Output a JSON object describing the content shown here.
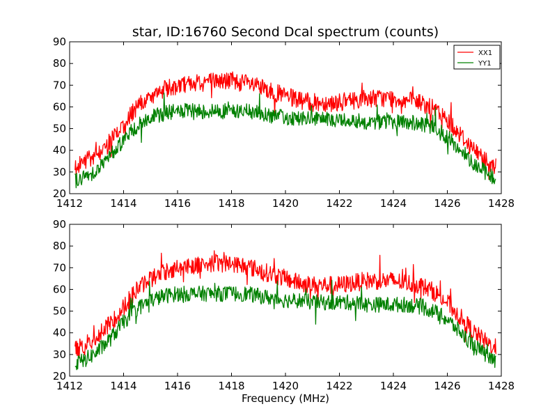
{
  "chart_data": [
    {
      "type": "line",
      "title": "star, ID:16760 Second Dcal spectrum (counts)",
      "xlabel": "",
      "ylabel": "",
      "xlim": [
        1412,
        1428
      ],
      "ylim": [
        20,
        90
      ],
      "xticks": [
        1412,
        1414,
        1416,
        1418,
        1420,
        1422,
        1424,
        1426,
        1428
      ],
      "yticks": [
        20,
        30,
        40,
        50,
        60,
        70,
        80,
        90
      ],
      "legend": {
        "placement": "top-right",
        "entries": [
          "XX1",
          "YY1"
        ]
      },
      "grid": false,
      "series": [
        {
          "name": "XX1",
          "color": "#ff0000",
          "x": [
            1412.2,
            1412.5,
            1413.0,
            1413.5,
            1414.0,
            1414.5,
            1415.0,
            1415.5,
            1416.0,
            1416.5,
            1417.0,
            1417.5,
            1418.0,
            1418.5,
            1419.0,
            1419.5,
            1420.0,
            1420.5,
            1421.0,
            1421.5,
            1422.0,
            1422.5,
            1423.0,
            1423.5,
            1424.0,
            1424.5,
            1425.0,
            1425.5,
            1426.0,
            1426.5,
            1427.0,
            1427.5,
            1427.8
          ],
          "values": [
            32,
            34,
            38,
            44,
            52,
            60,
            65,
            68,
            70,
            71,
            72,
            72,
            72,
            71,
            69,
            67,
            65,
            63,
            62,
            62,
            62,
            63,
            64,
            64,
            64,
            63,
            62,
            59,
            54,
            47,
            40,
            35,
            33
          ]
        },
        {
          "name": "YY1",
          "color": "#008000",
          "x": [
            1412.2,
            1412.5,
            1413.0,
            1413.5,
            1414.0,
            1414.5,
            1415.0,
            1415.5,
            1416.0,
            1416.5,
            1417.0,
            1417.5,
            1418.0,
            1418.5,
            1419.0,
            1419.5,
            1420.0,
            1420.5,
            1421.0,
            1421.5,
            1422.0,
            1422.5,
            1423.0,
            1423.5,
            1424.0,
            1424.5,
            1425.0,
            1425.5,
            1426.0,
            1426.5,
            1427.0,
            1427.5,
            1427.8
          ],
          "values": [
            26,
            27,
            31,
            37,
            45,
            51,
            55,
            57,
            58,
            58,
            58,
            58,
            58,
            58,
            57,
            56,
            55,
            55,
            54,
            54,
            54,
            54,
            53,
            53,
            53,
            53,
            52,
            50,
            46,
            40,
            34,
            29,
            27
          ]
        }
      ]
    },
    {
      "type": "line",
      "title": "",
      "xlabel": "Frequency (MHz)",
      "ylabel": "",
      "xlim": [
        1412,
        1428
      ],
      "ylim": [
        20,
        90
      ],
      "xticks": [
        1412,
        1414,
        1416,
        1418,
        1420,
        1422,
        1424,
        1426,
        1428
      ],
      "yticks": [
        20,
        30,
        40,
        50,
        60,
        70,
        80,
        90
      ],
      "grid": false,
      "series": [
        {
          "color": "#ff0000",
          "x": [
            1412.2,
            1412.5,
            1413.0,
            1413.5,
            1414.0,
            1414.5,
            1415.0,
            1415.5,
            1416.0,
            1416.5,
            1417.0,
            1417.5,
            1418.0,
            1418.5,
            1419.0,
            1419.5,
            1420.0,
            1420.5,
            1421.0,
            1421.5,
            1422.0,
            1422.5,
            1423.0,
            1423.5,
            1424.0,
            1424.5,
            1425.0,
            1425.5,
            1426.0,
            1426.5,
            1427.0,
            1427.5,
            1427.8
          ],
          "values": [
            32,
            34,
            38,
            44,
            52,
            60,
            65,
            68,
            70,
            71,
            72,
            72,
            72,
            71,
            69,
            67,
            65,
            63,
            62,
            62,
            62,
            63,
            64,
            64,
            64,
            63,
            62,
            59,
            54,
            47,
            40,
            35,
            33
          ]
        },
        {
          "color": "#008000",
          "x": [
            1412.2,
            1412.5,
            1413.0,
            1413.5,
            1414.0,
            1414.5,
            1415.0,
            1415.5,
            1416.0,
            1416.5,
            1417.0,
            1417.5,
            1418.0,
            1418.5,
            1419.0,
            1419.5,
            1420.0,
            1420.5,
            1421.0,
            1421.5,
            1422.0,
            1422.5,
            1423.0,
            1423.5,
            1424.0,
            1424.5,
            1425.0,
            1425.5,
            1426.0,
            1426.5,
            1427.0,
            1427.5,
            1427.8
          ],
          "values": [
            26,
            27,
            31,
            37,
            45,
            51,
            55,
            57,
            58,
            58,
            58,
            58,
            58,
            58,
            57,
            56,
            55,
            55,
            54,
            54,
            54,
            54,
            53,
            53,
            53,
            53,
            52,
            50,
            46,
            40,
            34,
            29,
            27
          ]
        }
      ]
    }
  ]
}
